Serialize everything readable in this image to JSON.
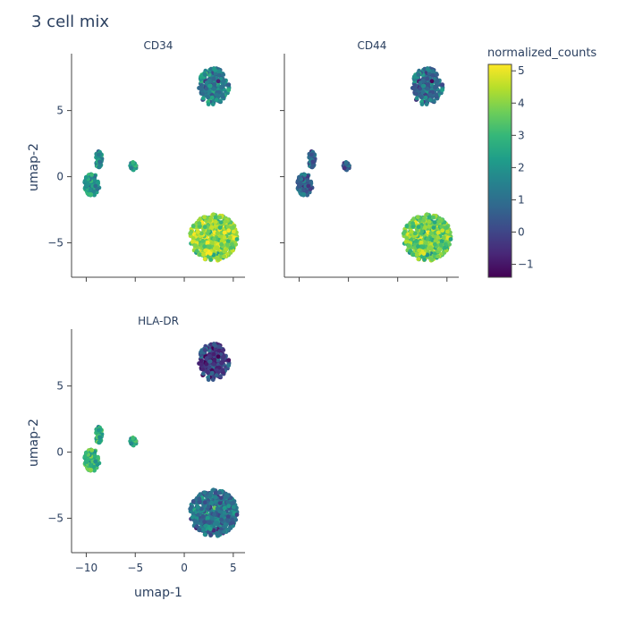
{
  "chart_data": {
    "type": "scatter",
    "title": "3 cell mix",
    "xlabel": "umap-1",
    "ylabel": "umap-2",
    "xlim": [
      -11.5,
      6.2
    ],
    "ylim": [
      -7.6,
      9.3
    ],
    "xticks": [
      -10,
      -5,
      0,
      5
    ],
    "yticks": [
      -5,
      0,
      5
    ],
    "colorbar": {
      "title": "normalized_counts",
      "range": [
        -1.4,
        5.2
      ],
      "ticks": [
        -1,
        0,
        1,
        2,
        3,
        4,
        5
      ],
      "colorscale": "viridis"
    },
    "clusters": [
      {
        "cx": -8.7,
        "cy": 1.3,
        "rx": 0.35,
        "ry": 0.7
      },
      {
        "cx": -9.4,
        "cy": -0.6,
        "rx": 0.85,
        "ry": 0.85
      },
      {
        "cx": -5.2,
        "cy": 0.8,
        "rx": 0.35,
        "ry": 0.3
      },
      {
        "cx": 3.0,
        "cy": 6.8,
        "rx": 1.6,
        "ry": 1.45
      },
      {
        "cx": 3.0,
        "cy": -4.6,
        "rx": 2.5,
        "ry": 1.8
      }
    ],
    "panels": [
      {
        "name": "CD34",
        "cluster_means": [
          1.8,
          2.0,
          2.3,
          1.4,
          4.1
        ]
      },
      {
        "name": "CD44",
        "cluster_means": [
          0.7,
          0.6,
          0.5,
          0.9,
          3.7
        ]
      },
      {
        "name": "HLA-DR",
        "cluster_means": [
          2.6,
          2.9,
          2.6,
          -0.2,
          1.1
        ]
      }
    ]
  }
}
